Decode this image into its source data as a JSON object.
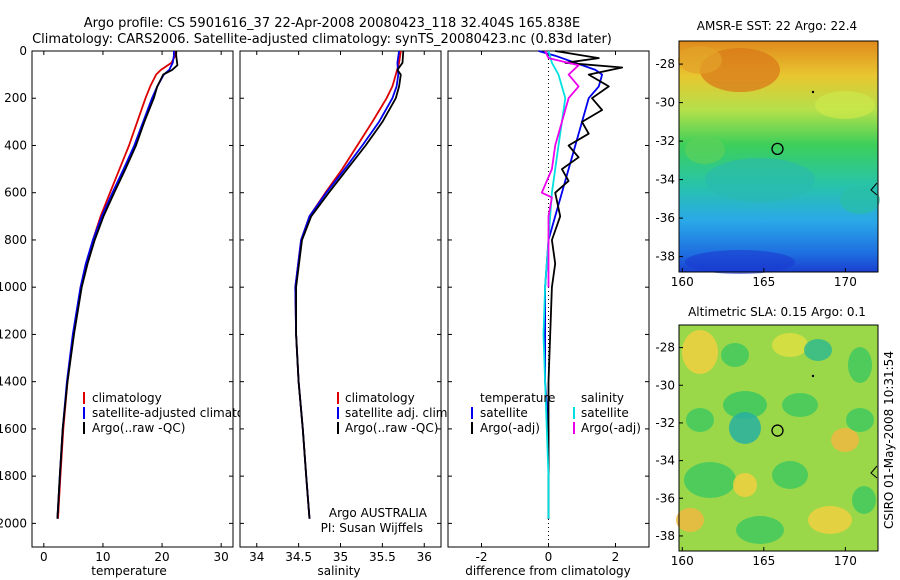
{
  "figure": {
    "title_line1": "Argo profile: CS 5901616_37 22-Apr-2008 20080423_118 32.404S 165.838E",
    "title_line2": "Climatology: CARS2006. Satellite-adjusted climatology: synTS_20080423.nc (0.83d later)",
    "credit": "CSIRO 01-May-2008 10:31:54",
    "colors": {
      "climatology": "#dd0000",
      "satellite": "#0000ee",
      "argo": "#000000",
      "cyan": "#00e0e0",
      "magenta": "#ee00ee"
    }
  },
  "chart_data": [
    {
      "type": "line",
      "xlabel": "temperature",
      "ylabel": "",
      "xlim": [
        -2,
        32
      ],
      "ylim": [
        0,
        2100
      ],
      "y_reversed": true,
      "xticks": [
        "0",
        "10",
        "20",
        "30"
      ],
      "xtick_values": [
        0,
        10,
        20,
        30
      ],
      "yticks": [
        "0",
        "200",
        "400",
        "600",
        "800",
        "1000",
        "1200",
        "1400",
        "1600",
        "1800",
        "2000"
      ],
      "ytick_values": [
        0,
        200,
        400,
        600,
        800,
        1000,
        1200,
        1400,
        1600,
        1800,
        2000
      ],
      "legend": [
        "climatology",
        "satellite-adjusted climatology",
        "Argo(..raw -QC)"
      ],
      "series": [
        {
          "name": "climatology",
          "color": "#dd0000",
          "depth": [
            0,
            20,
            50,
            80,
            100,
            150,
            200,
            300,
            400,
            500,
            600,
            700,
            800,
            900,
            1000,
            1200,
            1400,
            1600,
            1800,
            1980
          ],
          "values": [
            22.3,
            22.2,
            21.6,
            19.8,
            19.0,
            18.0,
            17.2,
            15.8,
            14.4,
            12.8,
            11.2,
            9.6,
            8.3,
            7.2,
            6.3,
            5.0,
            4.0,
            3.3,
            2.8,
            2.4
          ]
        },
        {
          "name": "satellite-adjusted climatology",
          "color": "#0000ee",
          "depth": [
            0,
            20,
            50,
            80,
            100,
            150,
            200,
            300,
            400,
            500,
            600,
            700,
            800,
            900,
            1000,
            1200,
            1400,
            1600,
            1800,
            1980
          ],
          "values": [
            22.0,
            22.0,
            21.8,
            21.2,
            20.3,
            19.2,
            18.3,
            16.8,
            15.3,
            13.5,
            11.6,
            9.8,
            8.3,
            7.1,
            6.2,
            4.9,
            3.9,
            3.2,
            2.7,
            2.3
          ]
        },
        {
          "name": "Argo(..raw -QC)",
          "color": "#000000",
          "depth": [
            0,
            20,
            40,
            60,
            80,
            100,
            150,
            200,
            300,
            400,
            500,
            600,
            700,
            800,
            900,
            1000,
            1200,
            1400,
            1600,
            1800,
            1980
          ],
          "values": [
            22.4,
            22.4,
            22.5,
            22.6,
            21.7,
            20.2,
            19.2,
            18.6,
            17.0,
            15.6,
            13.8,
            11.9,
            10.1,
            8.6,
            7.4,
            6.4,
            5.1,
            4.0,
            3.2,
            2.7,
            2.3
          ]
        }
      ]
    },
    {
      "type": "line",
      "xlabel": "salinity",
      "ylabel": "",
      "xlim": [
        33.8,
        36.2
      ],
      "ylim": [
        0,
        2100
      ],
      "y_reversed": true,
      "xticks": [
        "34",
        "34.5",
        "35",
        "35.5",
        "36"
      ],
      "xtick_values": [
        34,
        34.5,
        35,
        35.5,
        36
      ],
      "legend": [
        "climatology",
        "satellite adj. clim.",
        "Argo(..raw -QC)"
      ],
      "annotation_line1": "Argo AUSTRALIA",
      "annotation_line2": "PI: Susan Wijffels",
      "series": [
        {
          "name": "climatology",
          "color": "#dd0000",
          "depth": [
            0,
            50,
            100,
            150,
            200,
            300,
            400,
            500,
            600,
            700,
            800,
            1000,
            1200,
            1400,
            1600,
            1800,
            1980
          ],
          "values": [
            35.72,
            35.7,
            35.66,
            35.62,
            35.55,
            35.38,
            35.2,
            35.02,
            34.82,
            34.63,
            34.53,
            34.46,
            34.47,
            34.5,
            34.55,
            34.59,
            34.63
          ]
        },
        {
          "name": "satellite adj. clim.",
          "color": "#0000ee",
          "depth": [
            0,
            50,
            100,
            150,
            200,
            300,
            400,
            500,
            600,
            700,
            800,
            1000,
            1200,
            1400,
            1600,
            1800,
            1980
          ],
          "values": [
            35.7,
            35.68,
            35.69,
            35.67,
            35.62,
            35.46,
            35.26,
            35.05,
            34.83,
            34.63,
            34.53,
            34.46,
            34.47,
            34.5,
            34.55,
            34.59,
            34.63
          ]
        },
        {
          "name": "Argo(..raw -QC)",
          "color": "#000000",
          "depth": [
            0,
            50,
            80,
            100,
            150,
            200,
            300,
            400,
            500,
            600,
            700,
            800,
            1000,
            1200,
            1400,
            1600,
            1800,
            1980
          ],
          "values": [
            35.75,
            35.74,
            35.68,
            35.72,
            35.7,
            35.66,
            35.5,
            35.3,
            35.08,
            34.86,
            34.65,
            34.54,
            34.47,
            34.47,
            34.5,
            34.55,
            34.59,
            34.63
          ]
        }
      ]
    },
    {
      "type": "line",
      "xlabel": "difference from climatology",
      "ylabel": "",
      "xlim": [
        -3,
        3
      ],
      "ylim": [
        0,
        2100
      ],
      "y_reversed": true,
      "xticks": [
        "-2",
        "0",
        "2"
      ],
      "xtick_values": [
        -2,
        0,
        2
      ],
      "legend_left_title": "temperature",
      "legend_right_title": "salinity",
      "legend": [
        "satellite",
        "Argo(-adj)",
        "satellite",
        "Argo(-adj)"
      ],
      "series": [
        {
          "name": "satellite",
          "color": "#0000ee",
          "depth": [
            0,
            20,
            50,
            80,
            100,
            150,
            200,
            300,
            400,
            500,
            600,
            700,
            800,
            1000,
            1200,
            1400,
            1600,
            1800,
            1980
          ],
          "values": [
            -0.3,
            0.2,
            0.8,
            1.4,
            1.6,
            1.5,
            1.2,
            1.0,
            0.8,
            0.6,
            0.4,
            0.2,
            0.0,
            -0.1,
            -0.1,
            -0.1,
            0.0,
            0.0,
            0.0
          ]
        },
        {
          "name": "Argo(-adj)",
          "color": "#000000",
          "depth": [
            0,
            30,
            50,
            70,
            100,
            150,
            200,
            250,
            300,
            350,
            400,
            450,
            500,
            550,
            600,
            700,
            800,
            900,
            1000,
            1200,
            1400,
            1600,
            1800,
            1980
          ],
          "values": [
            0.2,
            1.5,
            0.5,
            2.2,
            1.2,
            1.8,
            1.3,
            1.6,
            1.0,
            1.2,
            0.6,
            0.9,
            0.4,
            0.6,
            0.2,
            0.35,
            0.1,
            0.2,
            0.1,
            0.05,
            0.0,
            0.0,
            0.0,
            0.0
          ]
        },
        {
          "name": "satellite",
          "color": "#00e0e0",
          "depth": [
            0,
            50,
            100,
            200,
            300,
            400,
            500,
            600,
            700,
            800,
            1000,
            1200,
            1400,
            1600,
            1800,
            1980
          ],
          "values": [
            0.0,
            0.1,
            0.3,
            0.5,
            0.4,
            0.3,
            0.2,
            0.1,
            0.05,
            0.0,
            -0.1,
            -0.15,
            -0.1,
            -0.05,
            0.0,
            0.0
          ]
        },
        {
          "name": "Argo(-adj)",
          "color": "#ee00ee",
          "depth": [
            0,
            30,
            60,
            100,
            150,
            200,
            300,
            400,
            500,
            600,
            620,
            700,
            800,
            1000
          ],
          "values": [
            -0.1,
            0.0,
            0.9,
            0.6,
            0.9,
            0.6,
            0.4,
            0.2,
            0.1,
            -0.2,
            0.1,
            0.0,
            0.0,
            0.0
          ]
        }
      ]
    },
    {
      "type": "heatmap",
      "title": "AMSR-E SST: 22 Argo: 22.4",
      "xlim": [
        159.8,
        172.0
      ],
      "ylim": [
        -38.8,
        -26.8
      ],
      "xticks": [
        "160",
        "165",
        "170"
      ],
      "xtick_values": [
        160,
        165,
        170
      ],
      "yticks": [
        "-28",
        "-30",
        "-32",
        "-34",
        "-36",
        "-38"
      ],
      "ytick_values": [
        -28,
        -30,
        -32,
        -34,
        -36,
        -38
      ],
      "marker": {
        "lon": 165.838,
        "lat": -32.404
      }
    },
    {
      "type": "heatmap",
      "title": "Altimetric SLA: 0.15 Argo: 0.1",
      "xlim": [
        159.8,
        172.0
      ],
      "ylim": [
        -38.8,
        -26.8
      ],
      "xticks": [
        "160",
        "165",
        "170"
      ],
      "xtick_values": [
        160,
        165,
        170
      ],
      "yticks": [
        "-28",
        "-30",
        "-32",
        "-34",
        "-36",
        "-38"
      ],
      "ytick_values": [
        -28,
        -30,
        -32,
        -34,
        -36,
        -38
      ],
      "marker": {
        "lon": 165.838,
        "lat": -32.404
      }
    }
  ]
}
